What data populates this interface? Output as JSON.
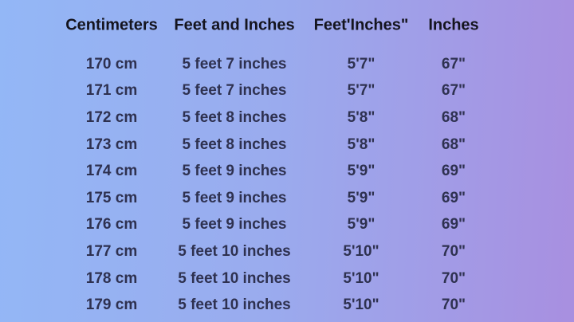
{
  "chart_data": {
    "type": "table",
    "title": "",
    "columns": [
      "Centimeters",
      "Feet and Inches",
      "Feet'Inches\"",
      "Inches"
    ],
    "rows": [
      [
        "170 cm",
        "5 feet 7 inches",
        "5'7\"",
        "67\""
      ],
      [
        "171 cm",
        "5 feet 7 inches",
        "5'7\"",
        "67\""
      ],
      [
        "172 cm",
        "5 feet 8 inches",
        "5'8\"",
        "68\""
      ],
      [
        "173 cm",
        "5 feet 8 inches",
        "5'8\"",
        "68\""
      ],
      [
        "174 cm",
        "5 feet 9 inches",
        "5'9\"",
        "69\""
      ],
      [
        "175 cm",
        "5 feet 9 inches",
        "5'9\"",
        "69\""
      ],
      [
        "176 cm",
        "5 feet 9 inches",
        "5'9\"",
        "69\""
      ],
      [
        "177 cm",
        "5 feet 10 inches",
        "5'10\"",
        "70\""
      ],
      [
        "178 cm",
        "5 feet 10 inches",
        "5'10\"",
        "70\""
      ],
      [
        "179 cm",
        "5 feet 10 inches",
        "5'10\"",
        "70\""
      ]
    ],
    "layout": {
      "grid": false,
      "header_row": true,
      "text_align": "center"
    }
  },
  "colors": {
    "background_left": "#93b7f6",
    "background_right": "#a88fe0",
    "header_text": "#14141e",
    "row_text": "#2e3150"
  }
}
